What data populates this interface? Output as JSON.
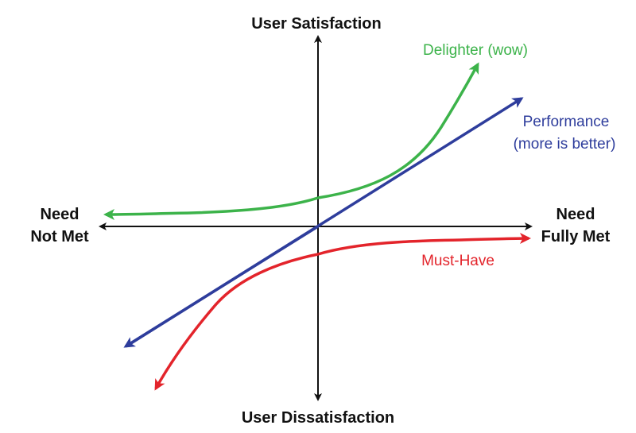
{
  "axes": {
    "top": "User Satisfaction",
    "bottom": "User Dissatisfaction",
    "left_line1": "Need",
    "left_line2": "Not Met",
    "right_line1": "Need",
    "right_line2": "Fully Met"
  },
  "curves": {
    "delighter": {
      "label": "Delighter (wow)",
      "color": "#3cb34a"
    },
    "performance": {
      "label_line1": "Performance",
      "label_line2": "(more is better)",
      "color": "#2e3d9c"
    },
    "must_have": {
      "label": "Must-Have",
      "color": "#e3242b"
    }
  },
  "axis_color": "#111111"
}
